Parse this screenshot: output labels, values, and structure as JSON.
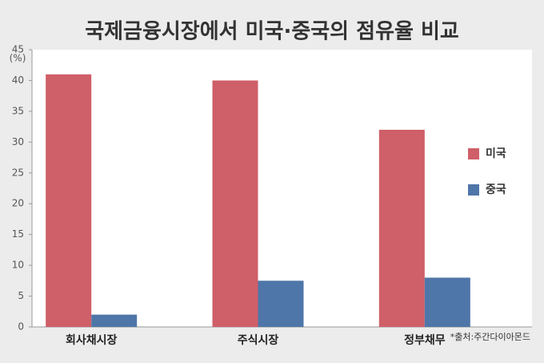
{
  "chart_data": {
    "type": "bar",
    "title": "국제금융시장에서 미국·중국의 점유율 비교",
    "y_unit": "(%)",
    "categories": [
      "회사채시장",
      "주식시장",
      "정부채무"
    ],
    "series": [
      {
        "name": "미국",
        "color": "#cf5f68",
        "values": [
          41,
          40,
          32
        ]
      },
      {
        "name": "중국",
        "color": "#4f76a8",
        "values": [
          2,
          7.5,
          8
        ]
      }
    ],
    "ylim": [
      0,
      45
    ],
    "yticks": [
      0,
      5,
      10,
      15,
      20,
      25,
      30,
      35,
      40,
      45
    ],
    "legend": "right",
    "source": "*출처:주간다이아몬드"
  }
}
